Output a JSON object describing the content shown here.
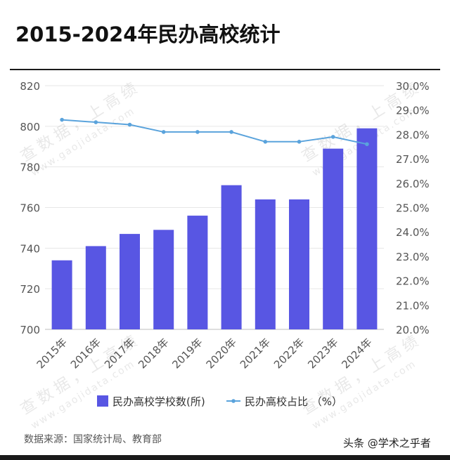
{
  "title": "2015-2024年民办高校统计",
  "source": "数据来源：国家统计局、教育部",
  "credit": "头条 @学术之乎者",
  "watermark": "查数据，上高绩 www.gaojidata.com",
  "colors": {
    "bar": "#5856E3",
    "line": "#5AA3DC",
    "grid": "#e6e6e6",
    "axis_text": "#555555"
  },
  "chart_data": {
    "type": "bar",
    "categories": [
      "2015年",
      "2016年",
      "2017年",
      "2018年",
      "2019年",
      "2020年",
      "2021年",
      "2022年",
      "2023年",
      "2024年"
    ],
    "series": [
      {
        "name": "民办高校学校数(所)",
        "type": "bar",
        "axis": "left",
        "values": [
          734,
          741,
          747,
          749,
          756,
          771,
          764,
          764,
          789,
          799
        ]
      },
      {
        "name": "民办高校占比 （%）",
        "type": "line",
        "axis": "right",
        "values": [
          28.6,
          28.5,
          28.4,
          28.1,
          28.1,
          28.1,
          27.7,
          27.7,
          27.9,
          27.6
        ]
      }
    ],
    "ylim": [
      700,
      820
    ],
    "yticks": [
      "700",
      "720",
      "740",
      "760",
      "780",
      "800",
      "820"
    ],
    "y2lim": [
      20,
      30
    ],
    "y2ticks": [
      "20.0%",
      "21.0%",
      "22.0%",
      "23.0%",
      "24.0%",
      "25.0%",
      "26.0%",
      "27.0%",
      "28.0%",
      "29.0%",
      "30.0%"
    ],
    "grid": true,
    "legend_position": "bottom"
  }
}
